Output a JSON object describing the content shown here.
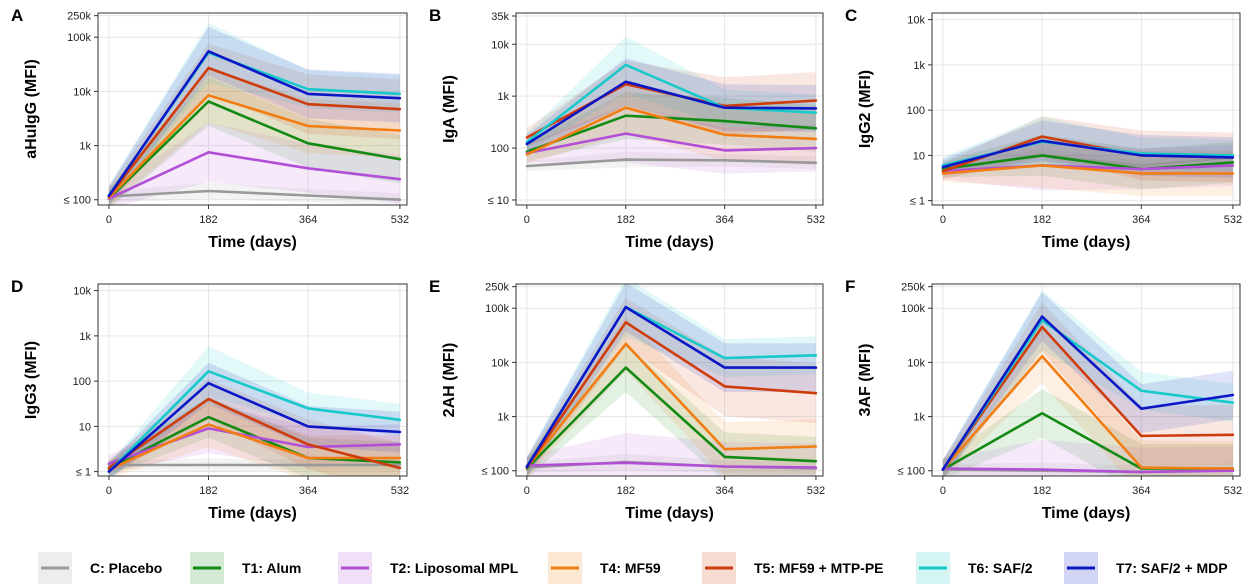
{
  "chart_data": [
    {
      "panel": "A",
      "type": "line",
      "ylabel": "aHuIgG (MFI)",
      "xlabel": "Time (days)",
      "x": [
        0,
        182,
        364,
        532
      ],
      "xticks": [
        "0",
        "182",
        "364",
        "532"
      ],
      "yscale": "log",
      "ylim": [
        80,
        280000
      ],
      "yticks": [
        {
          "v": 100,
          "label": "≤ 100"
        },
        {
          "v": 1000,
          "label": "1k"
        },
        {
          "v": 10000,
          "label": "10k"
        },
        {
          "v": 100000,
          "label": "100k"
        },
        {
          "v": 250000,
          "label": "250k"
        }
      ],
      "series": [
        {
          "name": "C: Placebo",
          "values": [
            115,
            145,
            120,
            100
          ]
        },
        {
          "name": "T1: Alum",
          "values": [
            105,
            6500,
            1100,
            560
          ]
        },
        {
          "name": "T2: Liposomal MPL",
          "values": [
            105,
            750,
            380,
            240
          ]
        },
        {
          "name": "T4: MF59",
          "values": [
            110,
            8500,
            2300,
            1900
          ]
        },
        {
          "name": "T5: MF59 + MTP-PE",
          "values": [
            115,
            27000,
            5800,
            4700
          ]
        },
        {
          "name": "T6: SAF/2",
          "values": [
            120,
            52000,
            11000,
            9000
          ]
        },
        {
          "name": "T7: SAF/2 + MDP",
          "values": [
            118,
            55000,
            9000,
            7500
          ]
        }
      ]
    },
    {
      "panel": "B",
      "type": "line",
      "ylabel": "IgA (MFI)",
      "xlabel": "Time (days)",
      "x": [
        0,
        182,
        364,
        532
      ],
      "xticks": [
        "0",
        "182",
        "364",
        "532"
      ],
      "yscale": "log",
      "ylim": [
        8,
        40000
      ],
      "yticks": [
        {
          "v": 10,
          "label": "≤ 10"
        },
        {
          "v": 100,
          "label": "100"
        },
        {
          "v": 1000,
          "label": "1k"
        },
        {
          "v": 10000,
          "label": "10k"
        },
        {
          "v": 35000,
          "label": "35k"
        }
      ],
      "series": [
        {
          "name": "C: Placebo",
          "values": [
            45,
            60,
            58,
            52
          ]
        },
        {
          "name": "T1: Alum",
          "values": [
            85,
            420,
            330,
            240
          ]
        },
        {
          "name": "T2: Liposomal MPL",
          "values": [
            80,
            190,
            90,
            100
          ]
        },
        {
          "name": "T4: MF59",
          "values": [
            75,
            600,
            180,
            150
          ]
        },
        {
          "name": "T5: MF59 + MTP-PE",
          "values": [
            160,
            1700,
            650,
            820
          ]
        },
        {
          "name": "T6: SAF/2",
          "values": [
            130,
            4000,
            600,
            480
          ]
        },
        {
          "name": "T7: SAF/2 + MDP",
          "values": [
            120,
            1900,
            600,
            580
          ]
        }
      ]
    },
    {
      "panel": "C",
      "type": "line",
      "ylabel": "IgG2 (MFI)",
      "xlabel": "Time (days)",
      "x": [
        0,
        182,
        364,
        532
      ],
      "xticks": [
        "0",
        "182",
        "364",
        "532"
      ],
      "yscale": "log",
      "ylim": [
        0.8,
        14000
      ],
      "yticks": [
        {
          "v": 1,
          "label": "≤ 1"
        },
        {
          "v": 10,
          "label": "10"
        },
        {
          "v": 100,
          "label": "100"
        },
        {
          "v": 1000,
          "label": "1k"
        },
        {
          "v": 10000,
          "label": "10k"
        }
      ],
      "series": [
        {
          "name": "C: Placebo",
          "values": [
            5,
            10,
            6,
            9
          ]
        },
        {
          "name": "T1: Alum",
          "values": [
            5,
            10,
            5,
            7
          ]
        },
        {
          "name": "T2: Liposomal MPL",
          "values": [
            4.5,
            6,
            5,
            6
          ]
        },
        {
          "name": "T4: MF59",
          "values": [
            4,
            6,
            4,
            4
          ]
        },
        {
          "name": "T5: MF59 + MTP-PE",
          "values": [
            4.5,
            26,
            10,
            9
          ]
        },
        {
          "name": "T6: SAF/2",
          "values": [
            6,
            20,
            11,
            10
          ]
        },
        {
          "name": "T7: SAF/2 + MDP",
          "values": [
            5.5,
            21,
            10,
            9
          ]
        }
      ]
    },
    {
      "panel": "D",
      "type": "line",
      "ylabel": "IgG3 (MFI)",
      "xlabel": "Time (days)",
      "x": [
        0,
        182,
        364,
        532
      ],
      "xticks": [
        "0",
        "182",
        "364",
        "532"
      ],
      "yscale": "log",
      "ylim": [
        0.8,
        14000
      ],
      "yticks": [
        {
          "v": 1,
          "label": "≤ 1"
        },
        {
          "v": 10,
          "label": "10"
        },
        {
          "v": 100,
          "label": "100"
        },
        {
          "v": 1000,
          "label": "1k"
        },
        {
          "v": 10000,
          "label": "10k"
        }
      ],
      "series": [
        {
          "name": "C: Placebo",
          "values": [
            1.4,
            1.4,
            1.4,
            1.4
          ]
        },
        {
          "name": "T1: Alum",
          "values": [
            1.2,
            16,
            2,
            1.6
          ]
        },
        {
          "name": "T2: Liposomal MPL",
          "values": [
            1.5,
            9,
            3.5,
            4
          ]
        },
        {
          "name": "T4: MF59",
          "values": [
            1.1,
            11,
            2,
            2
          ]
        },
        {
          "name": "T5: MF59 + MTP-PE",
          "values": [
            1.2,
            40,
            4,
            1.2
          ]
        },
        {
          "name": "T6: SAF/2",
          "values": [
            1,
            165,
            25,
            14
          ]
        },
        {
          "name": "T7: SAF/2 + MDP",
          "values": [
            1,
            90,
            10,
            7.5
          ]
        }
      ]
    },
    {
      "panel": "E",
      "type": "line",
      "ylabel": "2AH (MFI)",
      "xlabel": "Time (days)",
      "x": [
        0,
        182,
        364,
        532
      ],
      "xticks": [
        "0",
        "182",
        "364",
        "532"
      ],
      "yscale": "log",
      "ylim": [
        80,
        280000
      ],
      "yticks": [
        {
          "v": 100,
          "label": "≤ 100"
        },
        {
          "v": 1000,
          "label": "1k"
        },
        {
          "v": 10000,
          "label": "10k"
        },
        {
          "v": 100000,
          "label": "100k"
        },
        {
          "v": 250000,
          "label": "250k"
        }
      ],
      "series": [
        {
          "name": "C: Placebo",
          "values": [
            115,
            145,
            120,
            110
          ]
        },
        {
          "name": "T1: Alum",
          "values": [
            110,
            8000,
            180,
            150
          ]
        },
        {
          "name": "T2: Liposomal MPL",
          "values": [
            125,
            140,
            120,
            115
          ]
        },
        {
          "name": "T4: MF59",
          "values": [
            115,
            22000,
            250,
            280
          ]
        },
        {
          "name": "T5: MF59 + MTP-PE",
          "values": [
            115,
            55000,
            3600,
            2700
          ]
        },
        {
          "name": "T6: SAF/2",
          "values": [
            120,
            105000,
            12000,
            13500
          ]
        },
        {
          "name": "T7: SAF/2 + MDP",
          "values": [
            118,
            105000,
            8000,
            8000
          ]
        }
      ]
    },
    {
      "panel": "F",
      "type": "line",
      "ylabel": "3AF (MFI)",
      "xlabel": "Time (days)",
      "x": [
        0,
        182,
        364,
        532
      ],
      "xticks": [
        "0",
        "182",
        "364",
        "532"
      ],
      "yscale": "log",
      "ylim": [
        80,
        280000
      ],
      "yticks": [
        {
          "v": 100,
          "label": "≤ 100"
        },
        {
          "v": 1000,
          "label": "1k"
        },
        {
          "v": 10000,
          "label": "10k"
        },
        {
          "v": 100000,
          "label": "100k"
        },
        {
          "v": 250000,
          "label": "250k"
        }
      ],
      "series": [
        {
          "name": "C: Placebo",
          "values": [
            105,
            100,
            95,
            105
          ]
        },
        {
          "name": "T1: Alum",
          "values": [
            105,
            1150,
            110,
            110
          ]
        },
        {
          "name": "T2: Liposomal MPL",
          "values": [
            110,
            105,
            95,
            100
          ]
        },
        {
          "name": "T4: MF59",
          "values": [
            105,
            13000,
            115,
            110
          ]
        },
        {
          "name": "T5: MF59 + MTP-PE",
          "values": [
            105,
            45000,
            440,
            460
          ]
        },
        {
          "name": "T6: SAF/2",
          "values": [
            105,
            60000,
            3000,
            1800
          ]
        },
        {
          "name": "T7: SAF/2 + MDP",
          "values": [
            105,
            70000,
            1400,
            2500
          ]
        }
      ]
    }
  ],
  "legend": [
    {
      "label": "C: Placebo",
      "color": "#999999"
    },
    {
      "label": "T1: Alum",
      "color": "#138a13"
    },
    {
      "label": "T2: Liposomal MPL",
      "color": "#b14fd6"
    },
    {
      "label": "T4: MF59",
      "color": "#f27d12"
    },
    {
      "label": "T5: MF59 + MTP-PE",
      "color": "#cf3c0c"
    },
    {
      "label": "T6: SAF/2",
      "color": "#18c9c9"
    },
    {
      "label": "T7: SAF/2 + MDP",
      "color": "#0b16c4"
    }
  ]
}
